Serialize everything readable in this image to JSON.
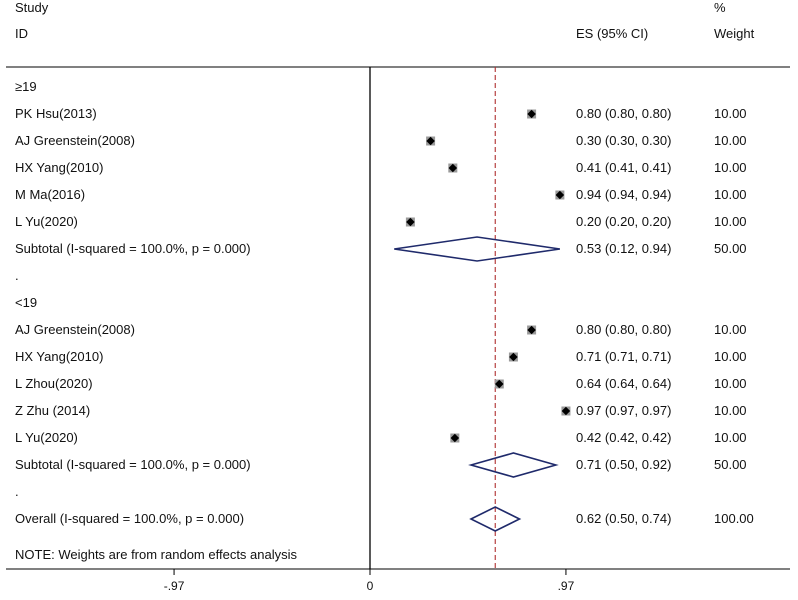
{
  "header": {
    "study_label": "Study",
    "id_label": "ID",
    "es_label": "ES (95% CI)",
    "pct_label": "%",
    "weight_label": "Weight"
  },
  "chart_data": {
    "type": "forest",
    "x_min": -1.0,
    "x_max": 1.02,
    "null_line": 0,
    "overall_effect": 0.62,
    "x_ticks": [
      {
        "value": -0.97,
        "label": "-.97"
      },
      {
        "value": 0,
        "label": "0"
      },
      {
        "value": 0.97,
        "label": ".97"
      }
    ],
    "groups": [
      {
        "label": "≥19",
        "studies": [
          {
            "name": "PK Hsu(2013)",
            "es": 0.8,
            "lo": 0.8,
            "hi": 0.8,
            "es_text": "0.80 (0.80, 0.80)",
            "weight": "10.00"
          },
          {
            "name": "AJ Greenstein(2008)",
            "es": 0.3,
            "lo": 0.3,
            "hi": 0.3,
            "es_text": "0.30 (0.30, 0.30)",
            "weight": "10.00"
          },
          {
            "name": "HX Yang(2010)",
            "es": 0.41,
            "lo": 0.41,
            "hi": 0.41,
            "es_text": "0.41 (0.41, 0.41)",
            "weight": "10.00"
          },
          {
            "name": "M Ma(2016)",
            "es": 0.94,
            "lo": 0.94,
            "hi": 0.94,
            "es_text": "0.94 (0.94, 0.94)",
            "weight": "10.00"
          },
          {
            "name": "L Yu(2020)",
            "es": 0.2,
            "lo": 0.2,
            "hi": 0.2,
            "es_text": "0.20 (0.20, 0.20)",
            "weight": "10.00"
          }
        ],
        "subtotal": {
          "name": "Subtotal  (I-squared = 100.0%, p = 0.000)",
          "es": 0.53,
          "lo": 0.12,
          "hi": 0.94,
          "es_text": "0.53 (0.12, 0.94)",
          "weight": "50.00"
        },
        "separator": "."
      },
      {
        "label": "<19",
        "studies": [
          {
            "name": "AJ Greenstein(2008)",
            "es": 0.8,
            "lo": 0.8,
            "hi": 0.8,
            "es_text": "0.80 (0.80, 0.80)",
            "weight": "10.00"
          },
          {
            "name": "HX Yang(2010)",
            "es": 0.71,
            "lo": 0.71,
            "hi": 0.71,
            "es_text": "0.71 (0.71, 0.71)",
            "weight": "10.00"
          },
          {
            "name": "L Zhou(2020)",
            "es": 0.64,
            "lo": 0.64,
            "hi": 0.64,
            "es_text": "0.64 (0.64, 0.64)",
            "weight": "10.00"
          },
          {
            "name": "Z Zhu (2014)",
            "es": 0.97,
            "lo": 0.97,
            "hi": 0.97,
            "es_text": "0.97 (0.97, 0.97)",
            "weight": "10.00"
          },
          {
            "name": "L Yu(2020)",
            "es": 0.42,
            "lo": 0.42,
            "hi": 0.42,
            "es_text": "0.42 (0.42, 0.42)",
            "weight": "10.00"
          }
        ],
        "subtotal": {
          "name": "Subtotal  (I-squared = 100.0%, p = 0.000)",
          "es": 0.71,
          "lo": 0.5,
          "hi": 0.92,
          "es_text": "0.71 (0.50, 0.92)",
          "weight": "50.00"
        },
        "separator": "."
      }
    ],
    "overall": {
      "name": "Overall  (I-squared = 100.0%, p = 0.000)",
      "es": 0.62,
      "lo": 0.5,
      "hi": 0.74,
      "es_text": "0.62 (0.50, 0.74)",
      "weight": "100.00"
    },
    "note": "NOTE: Weights are from random effects analysis",
    "colors": {
      "diamond": "#1f2a6b",
      "ref_line": "#b03030",
      "marker": "#000000",
      "axis": "#000000"
    }
  }
}
